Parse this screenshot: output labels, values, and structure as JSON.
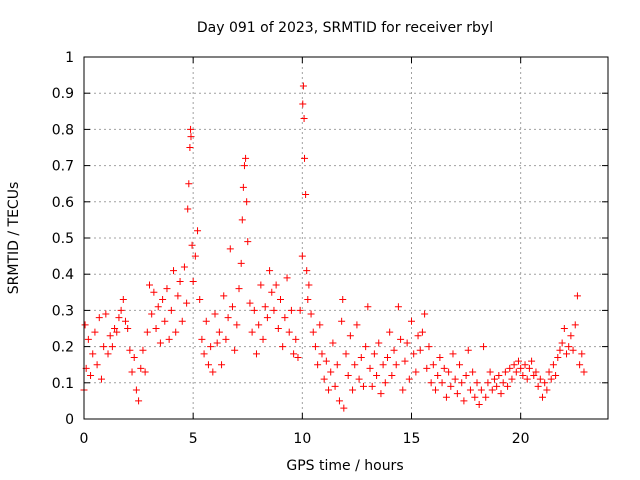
{
  "chart_data": {
    "type": "scatter",
    "title": "Day 091 of 2023, SRMTID for receiver rbyl",
    "xlabel": "GPS time / hours",
    "ylabel": "SRMTID / TECUs",
    "xlim": [
      0,
      24
    ],
    "ylim": [
      0,
      1
    ],
    "xticks": [
      0,
      5,
      10,
      15,
      20
    ],
    "xtick_labels": [
      "0",
      "5",
      "10",
      "15",
      "20"
    ],
    "yticks": [
      0,
      0.1,
      0.2,
      0.3,
      0.4,
      0.5,
      0.6,
      0.7,
      0.8,
      0.9,
      1
    ],
    "ytick_labels": [
      "0",
      "0.1",
      "0.2",
      "0.3",
      "0.4",
      "0.5",
      "0.6",
      "0.7",
      "0.8",
      "0.9",
      "1"
    ],
    "grid": true,
    "marker": "+",
    "color": "#ff0000",
    "series": [
      {
        "name": "SRMTID",
        "points": [
          [
            0.0,
            0.08
          ],
          [
            0.05,
            0.26
          ],
          [
            0.1,
            0.14
          ],
          [
            0.2,
            0.22
          ],
          [
            0.3,
            0.12
          ],
          [
            0.4,
            0.18
          ],
          [
            0.5,
            0.24
          ],
          [
            0.6,
            0.15
          ],
          [
            0.7,
            0.28
          ],
          [
            0.8,
            0.11
          ],
          [
            0.9,
            0.2
          ],
          [
            1.0,
            0.29
          ],
          [
            1.1,
            0.18
          ],
          [
            1.2,
            0.23
          ],
          [
            1.3,
            0.2
          ],
          [
            1.4,
            0.25
          ],
          [
            1.5,
            0.24
          ],
          [
            1.6,
            0.28
          ],
          [
            1.7,
            0.3
          ],
          [
            1.8,
            0.33
          ],
          [
            1.9,
            0.27
          ],
          [
            2.0,
            0.25
          ],
          [
            2.1,
            0.19
          ],
          [
            2.2,
            0.13
          ],
          [
            2.3,
            0.17
          ],
          [
            2.4,
            0.08
          ],
          [
            2.5,
            0.05
          ],
          [
            2.6,
            0.14
          ],
          [
            2.7,
            0.19
          ],
          [
            2.8,
            0.13
          ],
          [
            2.9,
            0.24
          ],
          [
            3.0,
            0.37
          ],
          [
            3.1,
            0.29
          ],
          [
            3.2,
            0.35
          ],
          [
            3.3,
            0.25
          ],
          [
            3.4,
            0.31
          ],
          [
            3.5,
            0.21
          ],
          [
            3.6,
            0.33
          ],
          [
            3.7,
            0.27
          ],
          [
            3.8,
            0.36
          ],
          [
            3.9,
            0.22
          ],
          [
            4.0,
            0.3
          ],
          [
            4.1,
            0.41
          ],
          [
            4.2,
            0.24
          ],
          [
            4.3,
            0.34
          ],
          [
            4.4,
            0.38
          ],
          [
            4.5,
            0.27
          ],
          [
            4.6,
            0.42
          ],
          [
            4.7,
            0.32
          ],
          [
            4.75,
            0.58
          ],
          [
            4.8,
            0.65
          ],
          [
            4.85,
            0.75
          ],
          [
            4.88,
            0.8
          ],
          [
            4.9,
            0.78
          ],
          [
            4.95,
            0.48
          ],
          [
            5.0,
            0.38
          ],
          [
            5.1,
            0.45
          ],
          [
            5.2,
            0.52
          ],
          [
            5.3,
            0.33
          ],
          [
            5.4,
            0.22
          ],
          [
            5.5,
            0.18
          ],
          [
            5.6,
            0.27
          ],
          [
            5.7,
            0.15
          ],
          [
            5.8,
            0.2
          ],
          [
            5.9,
            0.13
          ],
          [
            6.0,
            0.29
          ],
          [
            6.1,
            0.21
          ],
          [
            6.2,
            0.24
          ],
          [
            6.3,
            0.15
          ],
          [
            6.4,
            0.34
          ],
          [
            6.5,
            0.22
          ],
          [
            6.6,
            0.28
          ],
          [
            6.7,
            0.47
          ],
          [
            6.8,
            0.31
          ],
          [
            6.9,
            0.19
          ],
          [
            7.0,
            0.26
          ],
          [
            7.1,
            0.36
          ],
          [
            7.2,
            0.43
          ],
          [
            7.25,
            0.55
          ],
          [
            7.3,
            0.64
          ],
          [
            7.35,
            0.7
          ],
          [
            7.4,
            0.72
          ],
          [
            7.45,
            0.6
          ],
          [
            7.5,
            0.49
          ],
          [
            7.6,
            0.32
          ],
          [
            7.7,
            0.24
          ],
          [
            7.8,
            0.3
          ],
          [
            7.9,
            0.18
          ],
          [
            8.0,
            0.26
          ],
          [
            8.1,
            0.37
          ],
          [
            8.2,
            0.22
          ],
          [
            8.3,
            0.31
          ],
          [
            8.4,
            0.28
          ],
          [
            8.5,
            0.41
          ],
          [
            8.6,
            0.35
          ],
          [
            8.7,
            0.3
          ],
          [
            8.8,
            0.37
          ],
          [
            8.9,
            0.25
          ],
          [
            9.0,
            0.33
          ],
          [
            9.1,
            0.2
          ],
          [
            9.2,
            0.28
          ],
          [
            9.3,
            0.39
          ],
          [
            9.4,
            0.24
          ],
          [
            9.5,
            0.3
          ],
          [
            9.6,
            0.18
          ],
          [
            9.7,
            0.22
          ],
          [
            9.8,
            0.17
          ],
          [
            9.9,
            0.3
          ],
          [
            10.0,
            0.45
          ],
          [
            10.02,
            0.87
          ],
          [
            10.05,
            0.92
          ],
          [
            10.08,
            0.83
          ],
          [
            10.1,
            0.72
          ],
          [
            10.15,
            0.62
          ],
          [
            10.2,
            0.41
          ],
          [
            10.25,
            0.33
          ],
          [
            10.3,
            0.37
          ],
          [
            10.4,
            0.29
          ],
          [
            10.5,
            0.24
          ],
          [
            10.6,
            0.2
          ],
          [
            10.7,
            0.15
          ],
          [
            10.8,
            0.26
          ],
          [
            10.9,
            0.18
          ],
          [
            11.0,
            0.11
          ],
          [
            11.1,
            0.16
          ],
          [
            11.2,
            0.08
          ],
          [
            11.3,
            0.13
          ],
          [
            11.4,
            0.21
          ],
          [
            11.5,
            0.09
          ],
          [
            11.6,
            0.15
          ],
          [
            11.7,
            0.05
          ],
          [
            11.8,
            0.27
          ],
          [
            11.85,
            0.33
          ],
          [
            11.9,
            0.03
          ],
          [
            12.0,
            0.18
          ],
          [
            12.1,
            0.12
          ],
          [
            12.2,
            0.23
          ],
          [
            12.3,
            0.08
          ],
          [
            12.4,
            0.15
          ],
          [
            12.5,
            0.26
          ],
          [
            12.6,
            0.11
          ],
          [
            12.7,
            0.17
          ],
          [
            12.8,
            0.09
          ],
          [
            12.9,
            0.2
          ],
          [
            13.0,
            0.31
          ],
          [
            13.1,
            0.14
          ],
          [
            13.2,
            0.09
          ],
          [
            13.3,
            0.18
          ],
          [
            13.4,
            0.12
          ],
          [
            13.5,
            0.21
          ],
          [
            13.6,
            0.07
          ],
          [
            13.7,
            0.15
          ],
          [
            13.8,
            0.1
          ],
          [
            13.9,
            0.17
          ],
          [
            14.0,
            0.24
          ],
          [
            14.1,
            0.12
          ],
          [
            14.2,
            0.19
          ],
          [
            14.3,
            0.15
          ],
          [
            14.4,
            0.31
          ],
          [
            14.5,
            0.22
          ],
          [
            14.6,
            0.08
          ],
          [
            14.7,
            0.16
          ],
          [
            14.8,
            0.21
          ],
          [
            14.9,
            0.11
          ],
          [
            15.0,
            0.27
          ],
          [
            15.1,
            0.18
          ],
          [
            15.2,
            0.13
          ],
          [
            15.3,
            0.23
          ],
          [
            15.4,
            0.19
          ],
          [
            15.5,
            0.24
          ],
          [
            15.6,
            0.29
          ],
          [
            15.7,
            0.14
          ],
          [
            15.8,
            0.2
          ],
          [
            15.9,
            0.1
          ],
          [
            16.0,
            0.15
          ],
          [
            16.1,
            0.08
          ],
          [
            16.2,
            0.12
          ],
          [
            16.3,
            0.17
          ],
          [
            16.4,
            0.1
          ],
          [
            16.5,
            0.14
          ],
          [
            16.6,
            0.06
          ],
          [
            16.7,
            0.13
          ],
          [
            16.8,
            0.09
          ],
          [
            16.9,
            0.18
          ],
          [
            17.0,
            0.11
          ],
          [
            17.1,
            0.07
          ],
          [
            17.2,
            0.15
          ],
          [
            17.3,
            0.1
          ],
          [
            17.4,
            0.05
          ],
          [
            17.5,
            0.12
          ],
          [
            17.6,
            0.19
          ],
          [
            17.7,
            0.08
          ],
          [
            17.8,
            0.13
          ],
          [
            17.9,
            0.06
          ],
          [
            18.0,
            0.1
          ],
          [
            18.1,
            0.04
          ],
          [
            18.2,
            0.08
          ],
          [
            18.3,
            0.2
          ],
          [
            18.4,
            0.06
          ],
          [
            18.5,
            0.1
          ],
          [
            18.6,
            0.13
          ],
          [
            18.7,
            0.08
          ],
          [
            18.8,
            0.11
          ],
          [
            18.9,
            0.09
          ],
          [
            19.0,
            0.12
          ],
          [
            19.1,
            0.07
          ],
          [
            19.2,
            0.1
          ],
          [
            19.3,
            0.13
          ],
          [
            19.4,
            0.09
          ],
          [
            19.5,
            0.14
          ],
          [
            19.6,
            0.11
          ],
          [
            19.7,
            0.15
          ],
          [
            19.8,
            0.13
          ],
          [
            19.9,
            0.16
          ],
          [
            20.0,
            0.14
          ],
          [
            20.1,
            0.12
          ],
          [
            20.2,
            0.15
          ],
          [
            20.3,
            0.11
          ],
          [
            20.4,
            0.14
          ],
          [
            20.5,
            0.16
          ],
          [
            20.6,
            0.12
          ],
          [
            20.7,
            0.13
          ],
          [
            20.8,
            0.09
          ],
          [
            20.9,
            0.11
          ],
          [
            21.0,
            0.06
          ],
          [
            21.1,
            0.1
          ],
          [
            21.2,
            0.08
          ],
          [
            21.3,
            0.13
          ],
          [
            21.4,
            0.11
          ],
          [
            21.5,
            0.15
          ],
          [
            21.6,
            0.12
          ],
          [
            21.7,
            0.17
          ],
          [
            21.8,
            0.19
          ],
          [
            21.9,
            0.21
          ],
          [
            22.0,
            0.25
          ],
          [
            22.1,
            0.18
          ],
          [
            22.2,
            0.2
          ],
          [
            22.3,
            0.23
          ],
          [
            22.4,
            0.19
          ],
          [
            22.5,
            0.26
          ],
          [
            22.6,
            0.34
          ],
          [
            22.7,
            0.15
          ],
          [
            22.8,
            0.18
          ],
          [
            22.9,
            0.13
          ]
        ]
      }
    ]
  }
}
